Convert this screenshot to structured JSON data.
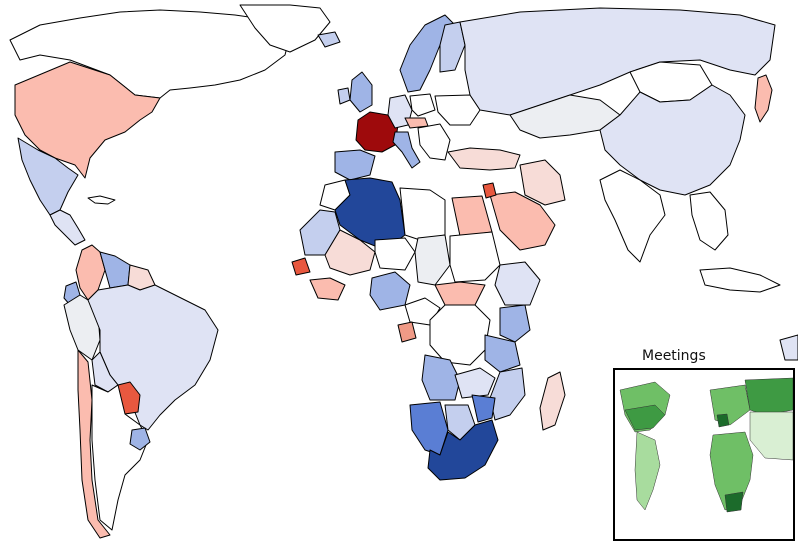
{
  "inset": {
    "title": "Meetings"
  },
  "colors": {
    "none": "#ffffff",
    "blue_pale": "#dfe3f4",
    "blue_light": "#c4cfee",
    "blue_mid": "#9fb4e6",
    "blue_strong": "#5a7ed4",
    "blue_dark": "#22479a",
    "red_pale": "#f7dcd7",
    "red_light": "#fbbcaf",
    "red_mid": "#f09a86",
    "red_strong": "#e8583f",
    "red_dark": "#9e0a0c",
    "gray_pale": "#eceef2",
    "green_pale": "#d9efd3",
    "green_light": "#a8dc9e",
    "green_mid": "#6fbf66",
    "green_strong": "#3e9a43",
    "green_dark": "#1c6b2b"
  }
}
